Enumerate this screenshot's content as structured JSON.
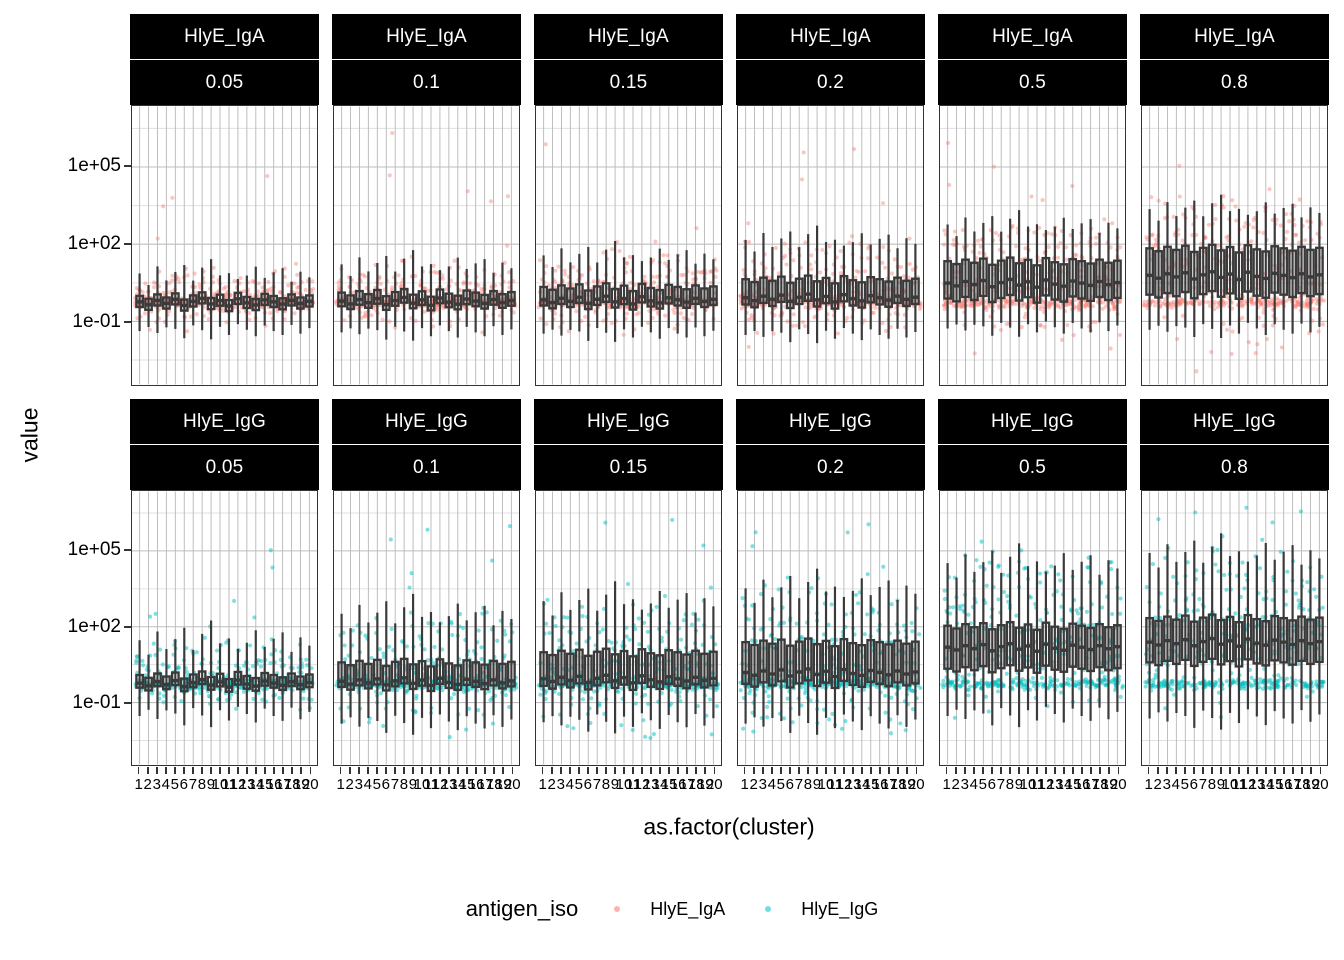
{
  "figure": {
    "y_axis_title": "value",
    "x_axis_title": "as.factor(cluster)"
  },
  "axes": {
    "y_ticks": [
      {
        "label": "1e+05",
        "log10": 5
      },
      {
        "label": "1e+02",
        "log10": 2
      },
      {
        "label": "1e-01",
        "log10": -1
      }
    ],
    "y_minor_log10": [
      6.5,
      3.5,
      0.5,
      -2.5
    ],
    "y_range_log10": [
      -3.45,
      7.35
    ],
    "x_tick_labels": [
      "1",
      "2",
      "3",
      "4",
      "5",
      "6",
      "7",
      "8",
      "9",
      "10",
      "11",
      "12",
      "13",
      "14",
      "15",
      "16",
      "17",
      "18",
      "19",
      "20"
    ]
  },
  "legend": {
    "title": "antigen_iso",
    "items": [
      {
        "label": "HlyE_IgA",
        "color": "#F8766D"
      },
      {
        "label": "HlyE_IgG",
        "color": "#00BFC4"
      }
    ]
  },
  "colors": {
    "iga_point": "#F8766D",
    "igg_point": "#00BFC4",
    "box_stroke": "#3A3A3A",
    "panel_border": "#333333",
    "grid_major": "#BDBDBD",
    "grid_minor": "#E0E0E0",
    "strip_bg": "#000000",
    "strip_text": "#FFFFFF"
  },
  "chart_data": {
    "type": "boxplot",
    "title": "",
    "xlabel": "as.factor(cluster)",
    "ylabel": "value",
    "y_scale": "log10",
    "ylim_log10": [
      -3.45,
      7.35
    ],
    "grid": true,
    "legend_position": "bottom",
    "facet_row_variable": "antigen_iso",
    "facet_rows": [
      "HlyE_IgA",
      "HlyE_IgG"
    ],
    "facet_col_values": [
      "0.05",
      "0.1",
      "0.15",
      "0.2",
      "0.5",
      "0.8"
    ],
    "x": [
      1,
      2,
      3,
      4,
      5,
      6,
      7,
      8,
      9,
      10,
      11,
      12,
      13,
      14,
      15,
      16,
      17,
      18,
      19,
      20
    ],
    "panels": [
      {
        "antigen_iso": "HlyE_IgA",
        "facet": "0.05",
        "box_log10": [
          -1.15,
          -0.48,
          -0.28,
          -0.05,
          0.4
        ]
      },
      {
        "antigen_iso": "HlyE_IgA",
        "facet": "0.1",
        "box_log10": [
          -1.2,
          -0.45,
          -0.25,
          0.08,
          0.75
        ]
      },
      {
        "antigen_iso": "HlyE_IgA",
        "facet": "0.15",
        "box_log10": [
          -1.25,
          -0.42,
          -0.2,
          0.3,
          1.1
        ]
      },
      {
        "antigen_iso": "HlyE_IgA",
        "facet": "0.2",
        "box_log10": [
          -1.3,
          -0.38,
          -0.12,
          0.6,
          1.7
        ]
      },
      {
        "antigen_iso": "HlyE_IgA",
        "facet": "0.5",
        "box_log10": [
          -1.05,
          -0.15,
          0.45,
          1.3,
          2.3
        ]
      },
      {
        "antigen_iso": "HlyE_IgA",
        "facet": "0.8",
        "box_log10": [
          -1.1,
          0.0,
          0.75,
          1.8,
          2.9
        ]
      },
      {
        "antigen_iso": "HlyE_IgG",
        "facet": "0.05",
        "box_log10": [
          -1.2,
          -0.45,
          -0.27,
          0.05,
          0.85
        ]
      },
      {
        "antigen_iso": "HlyE_IgG",
        "facet": "0.1",
        "box_log10": [
          -1.5,
          -0.42,
          -0.2,
          0.55,
          1.9
        ]
      },
      {
        "antigen_iso": "HlyE_IgG",
        "facet": "0.15",
        "box_log10": [
          -1.45,
          -0.38,
          -0.1,
          0.95,
          2.4
        ]
      },
      {
        "antigen_iso": "HlyE_IgG",
        "facet": "0.2",
        "box_log10": [
          -1.5,
          -0.3,
          0.15,
          1.35,
          2.9
        ]
      },
      {
        "antigen_iso": "HlyE_IgG",
        "facet": "0.5",
        "box_log10": [
          -1.2,
          0.3,
          1.15,
          2.0,
          3.9
        ]
      },
      {
        "antigen_iso": "HlyE_IgG",
        "facet": "0.8",
        "box_log10": [
          -1.3,
          0.55,
          1.35,
          2.3,
          4.3
        ]
      }
    ],
    "cluster_median_offsets_log10": [
      0.04,
      -0.07,
      0.1,
      -0.02,
      0.14,
      -0.1,
      0.06,
      0.18,
      -0.04,
      0.09,
      -0.12,
      0.16,
      0.0,
      -0.08,
      0.12,
      0.04,
      -0.05,
      0.1,
      -0.02,
      0.06
    ],
    "cluster_whisker_hi_extra_log10": [
      0.5,
      0.1,
      0.75,
      0.25,
      0.45,
      1.05,
      0.15,
      0.6,
      1.25,
      0.35,
      0.7,
      0.1,
      0.45,
      0.95,
      0.2,
      0.55,
      0.85,
      0.05,
      0.65,
      0.3
    ],
    "cluster_whisker_lo_extra_log10": [
      0.35,
      0.05,
      0.5,
      0.1,
      0.3,
      0.65,
      0.05,
      0.4,
      0.75,
      0.15,
      0.45,
      0.05,
      0.25,
      0.55,
      0.1,
      0.35,
      0.5,
      0.05,
      0.45,
      0.2
    ],
    "baseline_band_log10": {
      "center": -0.27,
      "sd": 0.12
    }
  }
}
